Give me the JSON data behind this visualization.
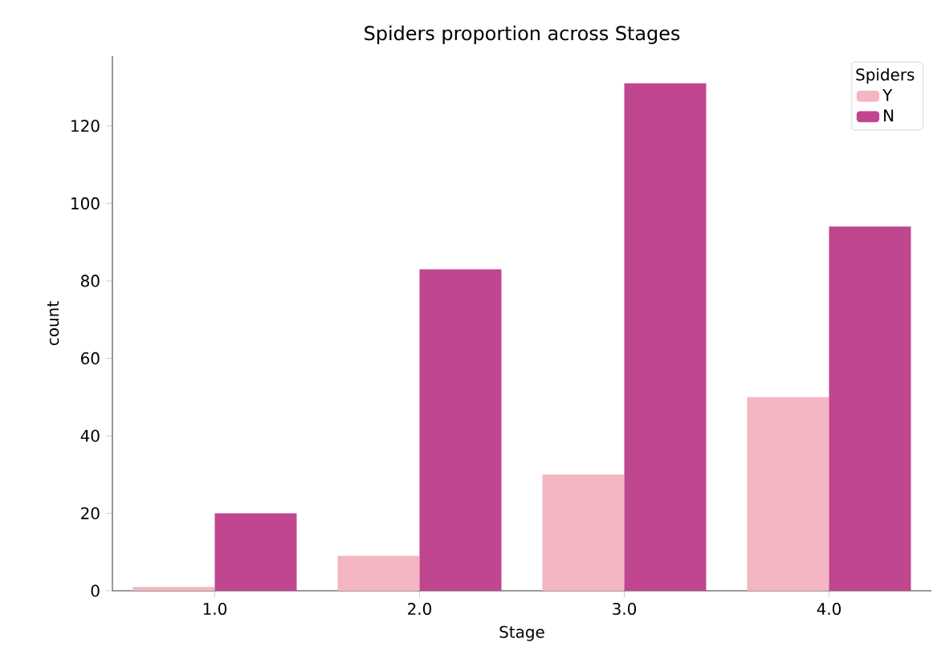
{
  "chart_data": {
    "type": "bar",
    "title": "Spiders proportion across Stages",
    "xlabel": "Stage",
    "ylabel": "count",
    "legend_title": "Spiders",
    "categories": [
      "1.0",
      "2.0",
      "3.0",
      "4.0"
    ],
    "series": [
      {
        "name": "Y",
        "color": "#f4b6c2",
        "values": [
          1,
          9,
          30,
          50
        ]
      },
      {
        "name": "N",
        "color": "#c0468f",
        "values": [
          20,
          83,
          131,
          94
        ]
      }
    ],
    "ylim": [
      0,
      138
    ],
    "yticks": [
      0,
      20,
      40,
      60,
      80,
      100,
      120
    ],
    "grid": false,
    "legend": "top right"
  }
}
